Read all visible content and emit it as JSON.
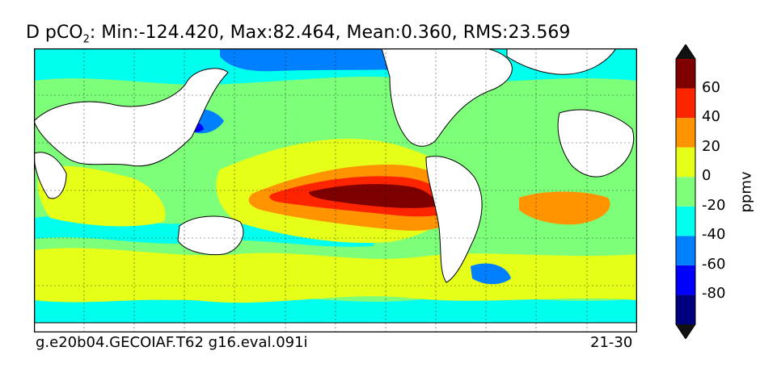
{
  "title": {
    "prefix": "D pCO",
    "subscript": "2",
    "stats": ": Min:-124.420, Max:82.464, Mean:0.360, RMS:23.569"
  },
  "footer": {
    "left": "g.e20b04.GECOIAF.T62 g16.eval.091i",
    "right": "21-30"
  },
  "chart_data": {
    "type": "heatmap",
    "title": "D pCO2: Min:-124.420, Max:82.464, Mean:0.360, RMS:23.569",
    "stats": {
      "min": -124.42,
      "max": 82.464,
      "mean": 0.36,
      "rms": 23.569
    },
    "colorbar": {
      "label": "ppmv",
      "tick_labels": [
        "60",
        "40",
        "20",
        "0",
        "-20",
        "-40",
        "-60",
        "-80"
      ],
      "levels": [
        -100,
        -80,
        -60,
        -40,
        -20,
        0,
        20,
        40,
        60,
        80
      ],
      "colors": [
        "#00007f",
        "#0000ff",
        "#007fff",
        "#00ffee",
        "#7dff7a",
        "#e5ff19",
        "#ff9400",
        "#ff2400",
        "#7f0000"
      ],
      "extend": "both"
    },
    "grid": true,
    "projection": "global map, 30E to 390E"
  },
  "colors": {
    "land": "#ffffff",
    "frame": "#000000"
  }
}
